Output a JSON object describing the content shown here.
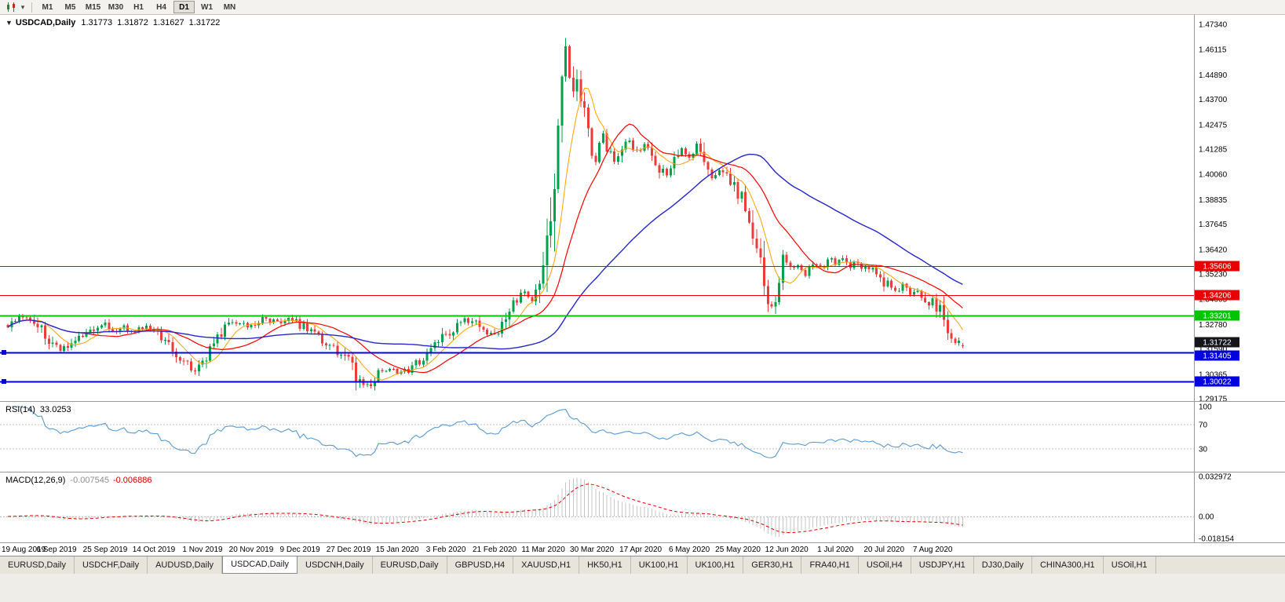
{
  "toolbar": {
    "timeframes": [
      "M1",
      "M5",
      "M15",
      "M30",
      "H1",
      "H4",
      "D1",
      "W1",
      "MN"
    ],
    "active": "D1"
  },
  "main_chart": {
    "title": "USDCAD,Daily",
    "open": "1.31773",
    "high": "1.31872",
    "low": "1.31627",
    "close": "1.31722"
  },
  "rsi_panel": {
    "name": "RSI(14)",
    "value": "33.0253",
    "axis": [
      "100",
      "70",
      "30"
    ]
  },
  "macd_panel": {
    "name": "MACD(12,26,9)",
    "value_main": "-0.007545",
    "value_signal": "-0.006886",
    "axis": [
      "0.032972",
      "0.00",
      "-0.018154"
    ]
  },
  "chart_data": {
    "type": "candlestick",
    "symbol": "USDCAD",
    "timeframe": "Daily",
    "ohlc_last": [
      1.31773,
      1.31872,
      1.31627,
      1.31722
    ],
    "y_axis_labels": [
      "1.47340",
      "1.46115",
      "1.44890",
      "1.43700",
      "1.42475",
      "1.41285",
      "1.40060",
      "1.38835",
      "1.37645",
      "1.36420",
      "1.35230",
      "1.34005",
      "1.32780",
      "1.31590",
      "1.30365",
      "1.29175"
    ],
    "x_axis_labels": [
      "19 Aug 2019",
      "6 Sep 2019",
      "25 Sep 2019",
      "14 Oct 2019",
      "1 Nov 2019",
      "20 Nov 2019",
      "9 Dec 2019",
      "27 Dec 2019",
      "15 Jan 2020",
      "3 Feb 2020",
      "21 Feb 2020",
      "11 Mar 2020",
      "30 Mar 2020",
      "17 Apr 2020",
      "6 May 2020",
      "25 May 2020",
      "12 Jun 2020",
      "1 Jul 2020",
      "20 Jul 2020",
      "7 Aug 2020"
    ],
    "horizontal_lines": [
      {
        "label": "1.35606",
        "price": 1.35606,
        "color": "#e80000",
        "width": 1,
        "handle": false,
        "badge_dy": 0
      },
      {
        "label": "1.34206",
        "price": 1.34206,
        "color": "#e80000",
        "width": 1,
        "handle": false,
        "badge_dy": 0
      },
      {
        "label": "1.33201",
        "price": 1.33201,
        "color": "#00c400",
        "width": 2,
        "handle": false,
        "badge_dy": 0
      },
      {
        "label": "1.31405",
        "price": 1.31405,
        "color": "#0000e0",
        "width": 2,
        "handle": true,
        "badge_dy": 4
      },
      {
        "label": "1.30022",
        "price": 1.30022,
        "color": "#0000e0",
        "width": 2,
        "handle": true,
        "badge_dy": 0
      }
    ],
    "current_price": {
      "label": "1.31722",
      "price": 1.31722,
      "badge_color": "#14161c"
    },
    "candles": {
      "count": 256,
      "up_color": "#00a14b",
      "down_color": "#ee3b3b"
    },
    "moving_averages": [
      {
        "period": 8,
        "color": "#ffa200",
        "width": 1
      },
      {
        "period": 20,
        "color": "#ff0000",
        "width": 1.2
      },
      {
        "period": 55,
        "color": "#2626cc",
        "width": 1.4
      }
    ],
    "rsi": {
      "period": 14,
      "color": "#5b9bd5",
      "levels": [
        70,
        30
      ],
      "current": 33.0253
    },
    "macd": {
      "fast": 12,
      "slow": 26,
      "signal": 9,
      "histogram_color": "#c6c6c6",
      "signal_color": "#e00000",
      "scale_max": 0.032972,
      "scale_min": -0.018154,
      "current_main": -0.007545,
      "current_signal": -0.006886
    },
    "price_anchors": [
      [
        0,
        1.3262
      ],
      [
        3,
        1.33
      ],
      [
        6,
        1.3318
      ],
      [
        9,
        1.325
      ],
      [
        12,
        1.317
      ],
      [
        14,
        1.315
      ],
      [
        16,
        1.319
      ],
      [
        19,
        1.3228
      ],
      [
        22,
        1.3258
      ],
      [
        25,
        1.3288
      ],
      [
        28,
        1.3248
      ],
      [
        31,
        1.3262
      ],
      [
        34,
        1.3246
      ],
      [
        37,
        1.3258
      ],
      [
        40,
        1.3232
      ],
      [
        43,
        1.318
      ],
      [
        46,
        1.311
      ],
      [
        49,
        1.3062
      ],
      [
        51,
        1.3075
      ],
      [
        53,
        1.313
      ],
      [
        56,
        1.3218
      ],
      [
        59,
        1.3282
      ],
      [
        62,
        1.3295
      ],
      [
        65,
        1.3272
      ],
      [
        68,
        1.3308
      ],
      [
        71,
        1.329
      ],
      [
        74,
        1.3302
      ],
      [
        77,
        1.3285
      ],
      [
        80,
        1.3255
      ],
      [
        83,
        1.3215
      ],
      [
        86,
        1.3172
      ],
      [
        89,
        1.3138
      ],
      [
        91,
        1.3102
      ],
      [
        93,
        1.302
      ],
      [
        95,
        1.2968
      ],
      [
        97,
        1.299
      ],
      [
        99,
        1.3042
      ],
      [
        101,
        1.3058
      ],
      [
        104,
        1.3046
      ],
      [
        107,
        1.3062
      ],
      [
        110,
        1.3095
      ],
      [
        113,
        1.3142
      ],
      [
        116,
        1.3208
      ],
      [
        119,
        1.3262
      ],
      [
        122,
        1.3298
      ],
      [
        125,
        1.3282
      ],
      [
        128,
        1.3242
      ],
      [
        130,
        1.3228
      ],
      [
        132,
        1.3285
      ],
      [
        134,
        1.333
      ],
      [
        136,
        1.3405
      ],
      [
        138,
        1.3435
      ],
      [
        140,
        1.3388
      ],
      [
        142,
        1.3452
      ],
      [
        143,
        1.356
      ],
      [
        144,
        1.3702
      ],
      [
        145,
        1.382
      ],
      [
        146,
        1.398
      ],
      [
        147,
        1.4232
      ],
      [
        148,
        1.4455
      ],
      [
        149,
        1.46
      ],
      [
        150,
        1.447
      ],
      [
        151,
        1.438
      ],
      [
        152,
        1.4465
      ],
      [
        153,
        1.4392
      ],
      [
        154,
        1.4302
      ],
      [
        155,
        1.4218
      ],
      [
        156,
        1.4122
      ],
      [
        157,
        1.4075
      ],
      [
        158,
        1.4152
      ],
      [
        159,
        1.4195
      ],
      [
        160,
        1.4138
      ],
      [
        162,
        1.4075
      ],
      [
        164,
        1.4122
      ],
      [
        166,
        1.4168
      ],
      [
        168,
        1.411
      ],
      [
        170,
        1.4155
      ],
      [
        172,
        1.4098
      ],
      [
        174,
        1.4042
      ],
      [
        176,
        1.3998
      ],
      [
        178,
        1.4075
      ],
      [
        180,
        1.4128
      ],
      [
        182,
        1.4088
      ],
      [
        184,
        1.4148
      ],
      [
        186,
        1.4082
      ],
      [
        188,
        1.3992
      ],
      [
        190,
        1.4035
      ],
      [
        192,
        1.3985
      ],
      [
        194,
        1.3942
      ],
      [
        196,
        1.389
      ],
      [
        198,
        1.381
      ],
      [
        200,
        1.3685
      ],
      [
        202,
        1.352
      ],
      [
        203,
        1.342
      ],
      [
        204,
        1.3355
      ],
      [
        205,
        1.3428
      ],
      [
        206,
        1.353
      ],
      [
        207,
        1.3612
      ],
      [
        209,
        1.3548
      ],
      [
        211,
        1.3572
      ],
      [
        213,
        1.3528
      ],
      [
        215,
        1.3585
      ],
      [
        217,
        1.3548
      ],
      [
        219,
        1.3598
      ],
      [
        221,
        1.3575
      ],
      [
        223,
        1.3608
      ],
      [
        225,
        1.3558
      ],
      [
        227,
        1.3588
      ],
      [
        229,
        1.3542
      ],
      [
        231,
        1.3562
      ],
      [
        233,
        1.3508
      ],
      [
        235,
        1.3472
      ],
      [
        237,
        1.3438
      ],
      [
        239,
        1.3468
      ],
      [
        241,
        1.3415
      ],
      [
        243,
        1.3448
      ],
      [
        245,
        1.3398
      ],
      [
        247,
        1.3382
      ],
      [
        249,
        1.3335
      ],
      [
        251,
        1.3242
      ],
      [
        253,
        1.3195
      ],
      [
        255,
        1.3172
      ]
    ]
  },
  "tabs": {
    "active_index": 3,
    "items": [
      "EURUSD,Daily",
      "USDCHF,Daily",
      "AUDUSD,Daily",
      "USDCAD,Daily",
      "USDCNH,Daily",
      "EURUSD,Daily",
      "GBPUSD,H4",
      "XAUUSD,H1",
      "HK50,H1",
      "UK100,H1",
      "UK100,H1",
      "GER30,H1",
      "FRA40,H1",
      "USOil,H4",
      "USDJPY,H1",
      "DJ30,Daily",
      "CHINA300,H1",
      "USOil,H1"
    ]
  }
}
